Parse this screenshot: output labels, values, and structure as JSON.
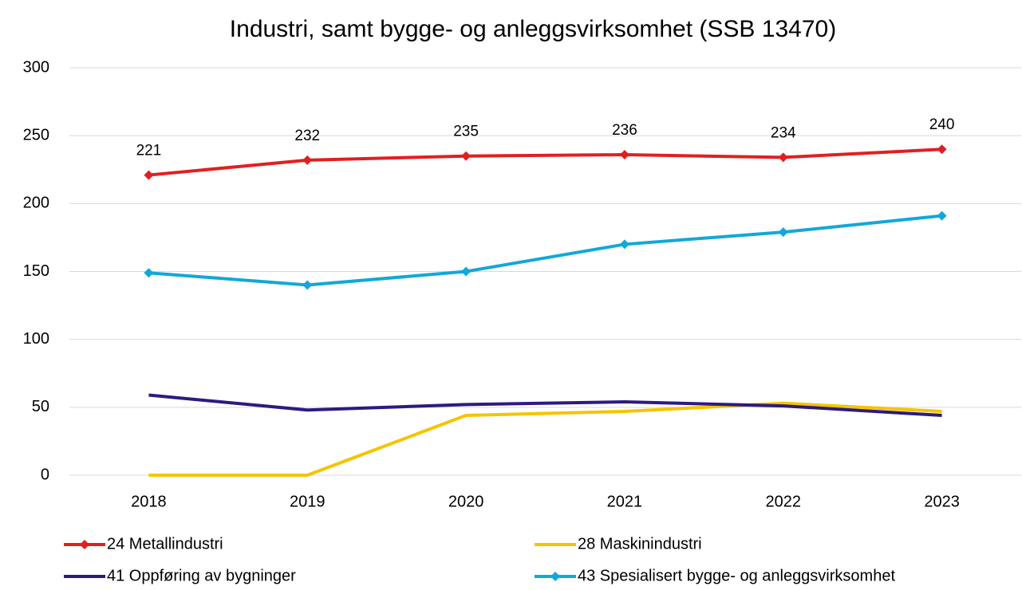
{
  "chart_data": {
    "type": "line",
    "title": "Industri, samt bygge- og anleggsvirksomhet (SSB 13470)",
    "categories": [
      "2018",
      "2019",
      "2020",
      "2021",
      "2022",
      "2023"
    ],
    "series": [
      {
        "name": "24 Metallindustri",
        "color": "#e02020",
        "marker": "diamond",
        "data_labels": true,
        "values": [
          221,
          232,
          235,
          236,
          234,
          240
        ]
      },
      {
        "name": "28 Maskinindustri",
        "color": "#f5c400",
        "values": [
          0,
          0,
          44,
          47,
          53,
          47
        ]
      },
      {
        "name": "41 Oppføring av bygninger",
        "color": "#2e1a80",
        "values": [
          59,
          48,
          52,
          54,
          51,
          44
        ]
      },
      {
        "name": "43 Spesialisert bygge- og anleggsvirksomhet",
        "color": "#12a8d8",
        "marker": "diamond",
        "values": [
          149,
          140,
          150,
          170,
          179,
          191
        ]
      }
    ],
    "ylim": [
      0,
      300
    ],
    "yticks": [
      0,
      50,
      100,
      150,
      200,
      250,
      300
    ],
    "grid": true,
    "legend": "bottom"
  }
}
